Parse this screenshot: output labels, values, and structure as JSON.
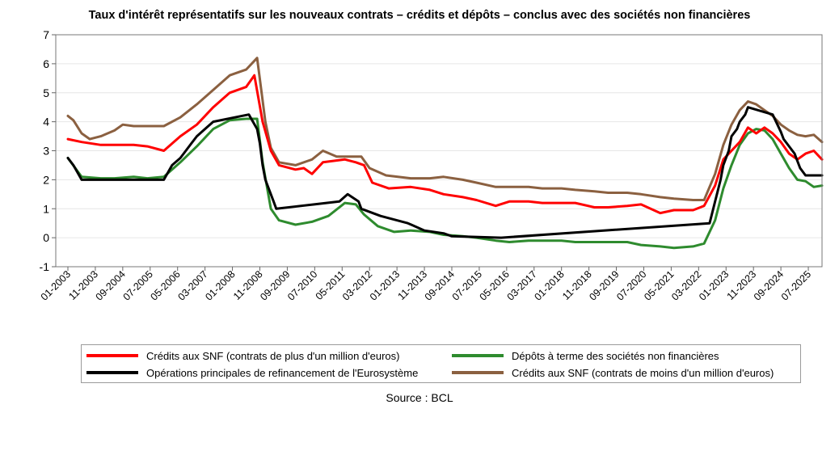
{
  "chart_data": {
    "type": "line",
    "title": "Taux d'intérêt représentatifs sur les nouveaux contrats – crédits et dépôts – conclus avec des sociétés non financières",
    "source": "Source : BCL",
    "ylim": [
      -1,
      7
    ],
    "yticks": [
      "-1",
      "0",
      "1",
      "2",
      "3",
      "4",
      "5",
      "6",
      "7"
    ],
    "xlim": [
      "2003-01",
      "2025-12"
    ],
    "xticks": [
      "01-2003",
      "11-2003",
      "09-2004",
      "07-2005",
      "05-2006",
      "03-2007",
      "01-2008",
      "11-2008",
      "09-2009",
      "07-2010",
      "05-2011",
      "03-2012",
      "01-2013",
      "11-2013",
      "09-2014",
      "07-2015",
      "05-2016",
      "03-2017",
      "01-2018",
      "11-2018",
      "09-2019",
      "07-2020",
      "05-2021",
      "03-2022",
      "01-2023",
      "11-2023",
      "09-2024",
      "07-2025"
    ],
    "grid": true,
    "legend_position": "bottom",
    "series": [
      {
        "name": "Crédits aux SNF (contrats de plus d'un million d'euros)",
        "color": "#ff0000",
        "points": [
          [
            "2003-01",
            3.4
          ],
          [
            "2003-06",
            3.3
          ],
          [
            "2004-01",
            3.2
          ],
          [
            "2004-06",
            3.2
          ],
          [
            "2005-01",
            3.2
          ],
          [
            "2005-06",
            3.15
          ],
          [
            "2005-12",
            3.0
          ],
          [
            "2006-06",
            3.5
          ],
          [
            "2006-12",
            3.9
          ],
          [
            "2007-06",
            4.5
          ],
          [
            "2007-12",
            5.0
          ],
          [
            "2008-06",
            5.2
          ],
          [
            "2008-09",
            5.6
          ],
          [
            "2008-12",
            4.0
          ],
          [
            "2009-03",
            3.0
          ],
          [
            "2009-06",
            2.5
          ],
          [
            "2009-12",
            2.35
          ],
          [
            "2010-03",
            2.4
          ],
          [
            "2010-06",
            2.2
          ],
          [
            "2010-10",
            2.6
          ],
          [
            "2011-06",
            2.7
          ],
          [
            "2011-10",
            2.6
          ],
          [
            "2012-01",
            2.5
          ],
          [
            "2012-04",
            1.9
          ],
          [
            "2012-10",
            1.7
          ],
          [
            "2013-06",
            1.75
          ],
          [
            "2014-01",
            1.65
          ],
          [
            "2014-06",
            1.5
          ],
          [
            "2015-01",
            1.4
          ],
          [
            "2015-06",
            1.3
          ],
          [
            "2016-01",
            1.1
          ],
          [
            "2016-06",
            1.25
          ],
          [
            "2017-01",
            1.25
          ],
          [
            "2017-06",
            1.2
          ],
          [
            "2018-01",
            1.2
          ],
          [
            "2018-06",
            1.2
          ],
          [
            "2019-01",
            1.05
          ],
          [
            "2019-06",
            1.05
          ],
          [
            "2020-01",
            1.1
          ],
          [
            "2020-06",
            1.15
          ],
          [
            "2021-01",
            0.85
          ],
          [
            "2021-06",
            0.95
          ],
          [
            "2022-01",
            0.95
          ],
          [
            "2022-05",
            1.1
          ],
          [
            "2022-09",
            1.8
          ],
          [
            "2022-12",
            2.7
          ],
          [
            "2023-03",
            3.0
          ],
          [
            "2023-06",
            3.3
          ],
          [
            "2023-09",
            3.8
          ],
          [
            "2023-12",
            3.6
          ],
          [
            "2024-03",
            3.8
          ],
          [
            "2024-06",
            3.6
          ],
          [
            "2024-09",
            3.3
          ],
          [
            "2024-12",
            2.9
          ],
          [
            "2025-03",
            2.7
          ],
          [
            "2025-06",
            2.9
          ],
          [
            "2025-09",
            3.0
          ],
          [
            "2025-12",
            2.7
          ]
        ]
      },
      {
        "name": "Dépôts à terme des sociétés non financières",
        "color": "#2e8b2e",
        "points": [
          [
            "2003-01",
            2.75
          ],
          [
            "2003-06",
            2.1
          ],
          [
            "2004-01",
            2.05
          ],
          [
            "2004-06",
            2.05
          ],
          [
            "2005-01",
            2.1
          ],
          [
            "2005-06",
            2.05
          ],
          [
            "2005-12",
            2.1
          ],
          [
            "2006-06",
            2.6
          ],
          [
            "2006-12",
            3.15
          ],
          [
            "2007-06",
            3.75
          ],
          [
            "2007-12",
            4.05
          ],
          [
            "2008-06",
            4.1
          ],
          [
            "2008-10",
            4.1
          ],
          [
            "2008-12",
            2.6
          ],
          [
            "2009-03",
            1.0
          ],
          [
            "2009-06",
            0.6
          ],
          [
            "2009-12",
            0.45
          ],
          [
            "2010-06",
            0.55
          ],
          [
            "2010-12",
            0.75
          ],
          [
            "2011-06",
            1.2
          ],
          [
            "2011-10",
            1.15
          ],
          [
            "2012-01",
            0.8
          ],
          [
            "2012-06",
            0.4
          ],
          [
            "2012-12",
            0.2
          ],
          [
            "2013-06",
            0.25
          ],
          [
            "2014-01",
            0.2
          ],
          [
            "2014-06",
            0.1
          ],
          [
            "2015-01",
            0.05
          ],
          [
            "2015-06",
            0.0
          ],
          [
            "2016-01",
            -0.1
          ],
          [
            "2016-06",
            -0.15
          ],
          [
            "2017-01",
            -0.1
          ],
          [
            "2017-06",
            -0.1
          ],
          [
            "2018-01",
            -0.1
          ],
          [
            "2018-06",
            -0.15
          ],
          [
            "2019-01",
            -0.15
          ],
          [
            "2019-06",
            -0.15
          ],
          [
            "2020-01",
            -0.15
          ],
          [
            "2020-06",
            -0.25
          ],
          [
            "2021-01",
            -0.3
          ],
          [
            "2021-06",
            -0.35
          ],
          [
            "2022-01",
            -0.3
          ],
          [
            "2022-05",
            -0.2
          ],
          [
            "2022-09",
            0.6
          ],
          [
            "2022-12",
            1.7
          ],
          [
            "2023-03",
            2.5
          ],
          [
            "2023-06",
            3.2
          ],
          [
            "2023-09",
            3.6
          ],
          [
            "2023-12",
            3.75
          ],
          [
            "2024-03",
            3.7
          ],
          [
            "2024-06",
            3.4
          ],
          [
            "2024-09",
            2.9
          ],
          [
            "2024-12",
            2.4
          ],
          [
            "2025-03",
            2.0
          ],
          [
            "2025-06",
            1.95
          ],
          [
            "2025-09",
            1.75
          ],
          [
            "2025-12",
            1.8
          ]
        ]
      },
      {
        "name": "Opérations principales de refinancement de l'Eurosystème",
        "color": "#000000",
        "points": [
          [
            "2003-01",
            2.75
          ],
          [
            "2003-03",
            2.5
          ],
          [
            "2003-06",
            2.0
          ],
          [
            "2005-12",
            2.0
          ],
          [
            "2006-03",
            2.5
          ],
          [
            "2006-06",
            2.75
          ],
          [
            "2006-08",
            3.0
          ],
          [
            "2006-10",
            3.25
          ],
          [
            "2006-12",
            3.5
          ],
          [
            "2007-03",
            3.75
          ],
          [
            "2007-06",
            4.0
          ],
          [
            "2008-07",
            4.25
          ],
          [
            "2008-10",
            3.75
          ],
          [
            "2008-11",
            3.25
          ],
          [
            "2008-12",
            2.5
          ],
          [
            "2009-01",
            2.0
          ],
          [
            "2009-03",
            1.5
          ],
          [
            "2009-04",
            1.25
          ],
          [
            "2009-05",
            1.0
          ],
          [
            "2011-04",
            1.25
          ],
          [
            "2011-07",
            1.5
          ],
          [
            "2011-11",
            1.25
          ],
          [
            "2011-12",
            1.0
          ],
          [
            "2012-07",
            0.75
          ],
          [
            "2013-05",
            0.5
          ],
          [
            "2013-11",
            0.25
          ],
          [
            "2014-06",
            0.15
          ],
          [
            "2014-09",
            0.05
          ],
          [
            "2016-03",
            0.0
          ],
          [
            "2022-07",
            0.5
          ],
          [
            "2022-09",
            1.25
          ],
          [
            "2022-11",
            2.0
          ],
          [
            "2022-12",
            2.5
          ],
          [
            "2023-02",
            3.0
          ],
          [
            "2023-03",
            3.5
          ],
          [
            "2023-05",
            3.75
          ],
          [
            "2023-06",
            4.0
          ],
          [
            "2023-08",
            4.25
          ],
          [
            "2023-09",
            4.5
          ],
          [
            "2024-06",
            4.25
          ],
          [
            "2024-09",
            3.65
          ],
          [
            "2024-10",
            3.4
          ],
          [
            "2024-12",
            3.15
          ],
          [
            "2025-02",
            2.9
          ],
          [
            "2025-03",
            2.65
          ],
          [
            "2025-04",
            2.4
          ],
          [
            "2025-06",
            2.15
          ],
          [
            "2025-12",
            2.15
          ]
        ]
      },
      {
        "name": "Crédits aux SNF (contrats de moins d'un million d'euros)",
        "color": "#8b6040",
        "points": [
          [
            "2003-01",
            4.2
          ],
          [
            "2003-03",
            4.05
          ],
          [
            "2003-06",
            3.6
          ],
          [
            "2003-09",
            3.4
          ],
          [
            "2004-01",
            3.5
          ],
          [
            "2004-06",
            3.7
          ],
          [
            "2004-09",
            3.9
          ],
          [
            "2005-01",
            3.85
          ],
          [
            "2005-06",
            3.85
          ],
          [
            "2005-12",
            3.85
          ],
          [
            "2006-06",
            4.15
          ],
          [
            "2006-12",
            4.6
          ],
          [
            "2007-06",
            5.1
          ],
          [
            "2007-12",
            5.6
          ],
          [
            "2008-06",
            5.8
          ],
          [
            "2008-10",
            6.2
          ],
          [
            "2009-01",
            4.0
          ],
          [
            "2009-03",
            3.1
          ],
          [
            "2009-06",
            2.6
          ],
          [
            "2009-12",
            2.5
          ],
          [
            "2010-06",
            2.7
          ],
          [
            "2010-10",
            3.0
          ],
          [
            "2011-03",
            2.8
          ],
          [
            "2011-06",
            2.8
          ],
          [
            "2011-12",
            2.8
          ],
          [
            "2012-03",
            2.4
          ],
          [
            "2012-09",
            2.15
          ],
          [
            "2013-06",
            2.05
          ],
          [
            "2014-01",
            2.05
          ],
          [
            "2014-06",
            2.1
          ],
          [
            "2015-01",
            2.0
          ],
          [
            "2015-06",
            1.9
          ],
          [
            "2016-01",
            1.75
          ],
          [
            "2016-06",
            1.75
          ],
          [
            "2017-01",
            1.75
          ],
          [
            "2017-06",
            1.7
          ],
          [
            "2018-01",
            1.7
          ],
          [
            "2018-06",
            1.65
          ],
          [
            "2019-01",
            1.6
          ],
          [
            "2019-06",
            1.55
          ],
          [
            "2020-01",
            1.55
          ],
          [
            "2020-06",
            1.5
          ],
          [
            "2021-01",
            1.4
          ],
          [
            "2021-06",
            1.35
          ],
          [
            "2022-01",
            1.3
          ],
          [
            "2022-05",
            1.3
          ],
          [
            "2022-09",
            2.2
          ],
          [
            "2022-12",
            3.2
          ],
          [
            "2023-03",
            3.9
          ],
          [
            "2023-06",
            4.4
          ],
          [
            "2023-09",
            4.7
          ],
          [
            "2023-12",
            4.6
          ],
          [
            "2024-03",
            4.4
          ],
          [
            "2024-06",
            4.2
          ],
          [
            "2024-09",
            3.9
          ],
          [
            "2024-12",
            3.7
          ],
          [
            "2025-03",
            3.55
          ],
          [
            "2025-06",
            3.5
          ],
          [
            "2025-09",
            3.55
          ],
          [
            "2025-12",
            3.3
          ]
        ]
      }
    ]
  }
}
